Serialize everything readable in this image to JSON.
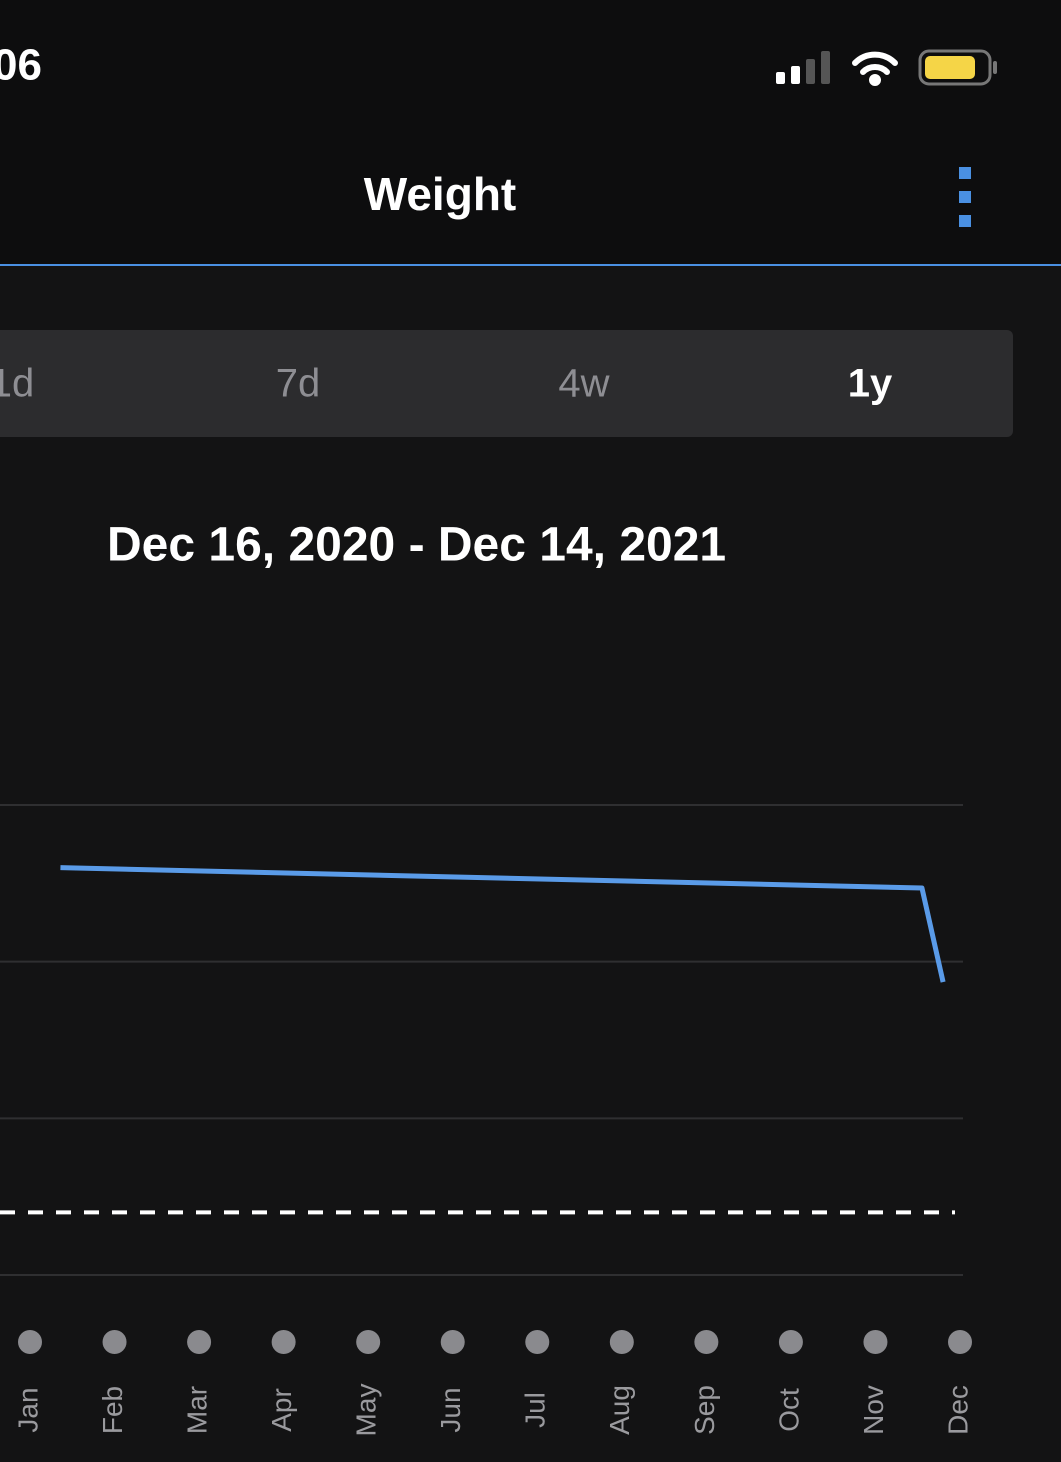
{
  "status": {
    "time": "06"
  },
  "header": {
    "title": "Weight"
  },
  "tabs": {
    "items": [
      "1d",
      "7d",
      "4w",
      "1y"
    ],
    "active": 3
  },
  "date_range": "Dec 16, 2020 - Dec 14, 2021",
  "chart_data": {
    "type": "line",
    "categories": [
      "Jan",
      "Feb",
      "Mar",
      "Apr",
      "May",
      "Jun",
      "Jul",
      "Aug",
      "Sep",
      "Oct",
      "Nov",
      "Dec"
    ],
    "xlim": [
      0,
      11
    ],
    "series": [
      {
        "color": "#5a9be8",
        "x": [
          0.36,
          10.55,
          10.8
        ],
        "values": [
          2.6,
          2.47,
          1.87
        ]
      }
    ],
    "goal": 0.4,
    "ylim": [
      0,
      3
    ],
    "yticks": [
      0,
      1,
      2,
      3
    ],
    "grid": true
  }
}
